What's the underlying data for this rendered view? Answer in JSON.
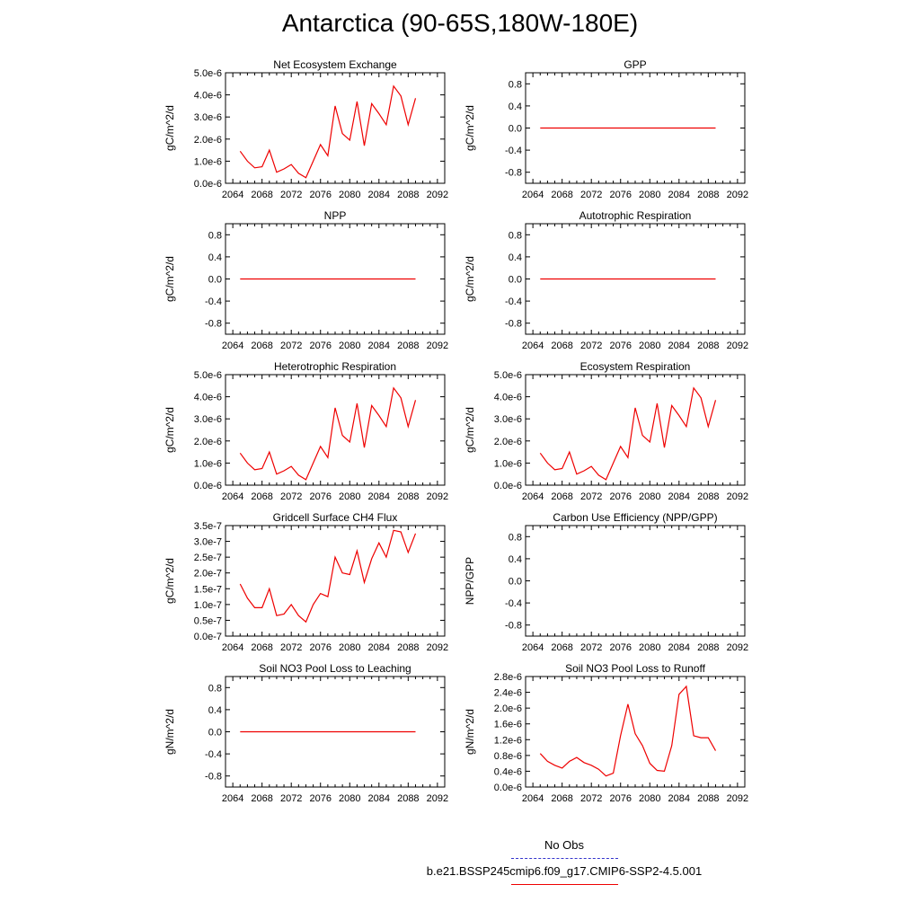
{
  "title": "Antarctica (90-65S,180W-180E)",
  "x_ticks": [
    "2064",
    "2068",
    "2072",
    "2076",
    "2080",
    "2084",
    "2088",
    "2092"
  ],
  "legend": {
    "obs": {
      "label": "No Obs",
      "color": "#3333cc"
    },
    "case": {
      "label": "b.e21.BSSP245cmip6.f09_g17.CMIP6-SSP2-4.5.001",
      "color": "#ee0000"
    }
  },
  "chart_data": [
    {
      "type": "line",
      "title": "Net Ecosystem Exchange",
      "ylabel": "gC/m^2/d",
      "xlim": [
        2063,
        2093
      ],
      "ylim": [
        0,
        5e-06
      ],
      "yticks": [
        {
          "v": 0,
          "label": "0.0e-6"
        },
        {
          "v": 1e-06,
          "label": "1.0e-6"
        },
        {
          "v": 2e-06,
          "label": "2.0e-6"
        },
        {
          "v": 3e-06,
          "label": "3.0e-6"
        },
        {
          "v": 4e-06,
          "label": "4.0e-6"
        },
        {
          "v": 5e-06,
          "label": "5.0e-6"
        }
      ],
      "x": [
        2065,
        2066,
        2067,
        2068,
        2069,
        2070,
        2071,
        2072,
        2073,
        2074,
        2075,
        2076,
        2077,
        2078,
        2079,
        2080,
        2081,
        2082,
        2083,
        2084,
        2085,
        2086,
        2087,
        2088,
        2089
      ],
      "y": [
        1.45e-06,
        1e-06,
        7e-07,
        7.5e-07,
        1.5e-06,
        5e-07,
        6.5e-07,
        8.5e-07,
        4.5e-07,
        2.5e-07,
        1e-06,
        1.75e-06,
        1.25e-06,
        3.5e-06,
        2.25e-06,
        1.95e-06,
        3.7e-06,
        1.7e-06,
        3.6e-06,
        3.15e-06,
        2.65e-06,
        4.4e-06,
        3.95e-06,
        2.65e-06,
        3.85e-06
      ]
    },
    {
      "type": "line",
      "title": "GPP",
      "ylabel": "gC/m^2/d",
      "xlim": [
        2063,
        2093
      ],
      "ylim": [
        -1.0,
        1.0
      ],
      "yticks": [
        {
          "v": -0.8,
          "label": "-0.8"
        },
        {
          "v": -0.4,
          "label": "-0.4"
        },
        {
          "v": 0,
          "label": "0.0"
        },
        {
          "v": 0.4,
          "label": "0.4"
        },
        {
          "v": 0.8,
          "label": "0.8"
        }
      ],
      "x": [
        2065,
        2089
      ],
      "y": [
        0,
        0
      ]
    },
    {
      "type": "line",
      "title": "NPP",
      "ylabel": "gC/m^2/d",
      "xlim": [
        2063,
        2093
      ],
      "ylim": [
        -1.0,
        1.0
      ],
      "yticks": [
        {
          "v": -0.8,
          "label": "-0.8"
        },
        {
          "v": -0.4,
          "label": "-0.4"
        },
        {
          "v": 0,
          "label": "0.0"
        },
        {
          "v": 0.4,
          "label": "0.4"
        },
        {
          "v": 0.8,
          "label": "0.8"
        }
      ],
      "x": [
        2065,
        2089
      ],
      "y": [
        0,
        0
      ]
    },
    {
      "type": "line",
      "title": "Autotrophic Respiration",
      "ylabel": "gC/m^2/d",
      "xlim": [
        2063,
        2093
      ],
      "ylim": [
        -1.0,
        1.0
      ],
      "yticks": [
        {
          "v": -0.8,
          "label": "-0.8"
        },
        {
          "v": -0.4,
          "label": "-0.4"
        },
        {
          "v": 0,
          "label": "0.0"
        },
        {
          "v": 0.4,
          "label": "0.4"
        },
        {
          "v": 0.8,
          "label": "0.8"
        }
      ],
      "x": [
        2065,
        2089
      ],
      "y": [
        0,
        0
      ]
    },
    {
      "type": "line",
      "title": "Heterotrophic Respiration",
      "ylabel": "gC/m^2/d",
      "xlim": [
        2063,
        2093
      ],
      "ylim": [
        0,
        5e-06
      ],
      "yticks": [
        {
          "v": 0,
          "label": "0.0e-6"
        },
        {
          "v": 1e-06,
          "label": "1.0e-6"
        },
        {
          "v": 2e-06,
          "label": "2.0e-6"
        },
        {
          "v": 3e-06,
          "label": "3.0e-6"
        },
        {
          "v": 4e-06,
          "label": "4.0e-6"
        },
        {
          "v": 5e-06,
          "label": "5.0e-6"
        }
      ],
      "x": [
        2065,
        2066,
        2067,
        2068,
        2069,
        2070,
        2071,
        2072,
        2073,
        2074,
        2075,
        2076,
        2077,
        2078,
        2079,
        2080,
        2081,
        2082,
        2083,
        2084,
        2085,
        2086,
        2087,
        2088,
        2089
      ],
      "y": [
        1.45e-06,
        1e-06,
        7e-07,
        7.5e-07,
        1.5e-06,
        5e-07,
        6.5e-07,
        8.5e-07,
        4.5e-07,
        2.5e-07,
        1e-06,
        1.75e-06,
        1.25e-06,
        3.5e-06,
        2.25e-06,
        1.95e-06,
        3.7e-06,
        1.7e-06,
        3.6e-06,
        3.15e-06,
        2.65e-06,
        4.4e-06,
        3.95e-06,
        2.65e-06,
        3.85e-06
      ]
    },
    {
      "type": "line",
      "title": "Ecosystem Respiration",
      "ylabel": "gC/m^2/d",
      "xlim": [
        2063,
        2093
      ],
      "ylim": [
        0,
        5e-06
      ],
      "yticks": [
        {
          "v": 0,
          "label": "0.0e-6"
        },
        {
          "v": 1e-06,
          "label": "1.0e-6"
        },
        {
          "v": 2e-06,
          "label": "2.0e-6"
        },
        {
          "v": 3e-06,
          "label": "3.0e-6"
        },
        {
          "v": 4e-06,
          "label": "4.0e-6"
        },
        {
          "v": 5e-06,
          "label": "5.0e-6"
        }
      ],
      "x": [
        2065,
        2066,
        2067,
        2068,
        2069,
        2070,
        2071,
        2072,
        2073,
        2074,
        2075,
        2076,
        2077,
        2078,
        2079,
        2080,
        2081,
        2082,
        2083,
        2084,
        2085,
        2086,
        2087,
        2088,
        2089
      ],
      "y": [
        1.45e-06,
        1e-06,
        7e-07,
        7.5e-07,
        1.5e-06,
        5e-07,
        6.5e-07,
        8.5e-07,
        4.5e-07,
        2.5e-07,
        1e-06,
        1.75e-06,
        1.25e-06,
        3.5e-06,
        2.25e-06,
        1.95e-06,
        3.7e-06,
        1.7e-06,
        3.6e-06,
        3.15e-06,
        2.65e-06,
        4.4e-06,
        3.95e-06,
        2.65e-06,
        3.85e-06
      ]
    },
    {
      "type": "line",
      "title": "Gridcell Surface CH4 Flux",
      "ylabel": "gC/m^2/d",
      "xlim": [
        2063,
        2093
      ],
      "ylim": [
        0,
        3.5e-07
      ],
      "yticks": [
        {
          "v": 0,
          "label": "0.0e-7"
        },
        {
          "v": 5e-08,
          "label": "0.5e-7"
        },
        {
          "v": 1e-07,
          "label": "1.0e-7"
        },
        {
          "v": 1.5e-07,
          "label": "1.5e-7"
        },
        {
          "v": 2e-07,
          "label": "2.0e-7"
        },
        {
          "v": 2.5e-07,
          "label": "2.5e-7"
        },
        {
          "v": 3e-07,
          "label": "3.0e-7"
        },
        {
          "v": 3.5e-07,
          "label": "3.5e-7"
        }
      ],
      "x": [
        2065,
        2066,
        2067,
        2068,
        2069,
        2070,
        2071,
        2072,
        2073,
        2074,
        2075,
        2076,
        2077,
        2078,
        2079,
        2080,
        2081,
        2082,
        2083,
        2084,
        2085,
        2086,
        2087,
        2088,
        2089
      ],
      "y": [
        1.65e-07,
        1.2e-07,
        9e-08,
        9e-08,
        1.5e-07,
        6.5e-08,
        7e-08,
        1e-07,
        6.5e-08,
        4.5e-08,
        1e-07,
        1.35e-07,
        1.25e-07,
        2.5e-07,
        2e-07,
        1.95e-07,
        2.7e-07,
        1.7e-07,
        2.45e-07,
        2.95e-07,
        2.5e-07,
        3.35e-07,
        3.3e-07,
        2.65e-07,
        3.25e-07
      ]
    },
    {
      "type": "line",
      "title": "Carbon Use Efficiency (NPP/GPP)",
      "ylabel": "NPP/GPP",
      "xlim": [
        2063,
        2093
      ],
      "ylim": [
        -1.0,
        1.0
      ],
      "yticks": [
        {
          "v": -0.8,
          "label": "-0.8"
        },
        {
          "v": -0.4,
          "label": "-0.4"
        },
        {
          "v": 0,
          "label": "0.0"
        },
        {
          "v": 0.4,
          "label": "0.4"
        },
        {
          "v": 0.8,
          "label": "0.8"
        }
      ],
      "x": [],
      "y": []
    },
    {
      "type": "line",
      "title": "Soil NO3 Pool Loss to Leaching",
      "ylabel": "gN/m^2/d",
      "xlim": [
        2063,
        2093
      ],
      "ylim": [
        -1.0,
        1.0
      ],
      "yticks": [
        {
          "v": -0.8,
          "label": "-0.8"
        },
        {
          "v": -0.4,
          "label": "-0.4"
        },
        {
          "v": 0,
          "label": "0.0"
        },
        {
          "v": 0.4,
          "label": "0.4"
        },
        {
          "v": 0.8,
          "label": "0.8"
        }
      ],
      "x": [
        2065,
        2089
      ],
      "y": [
        0,
        0
      ]
    },
    {
      "type": "line",
      "title": "Soil NO3 Pool Loss to Runoff",
      "ylabel": "gN/m^2/d",
      "xlim": [
        2063,
        2093
      ],
      "ylim": [
        0,
        2.8e-06
      ],
      "yticks": [
        {
          "v": 0,
          "label": "0.0e-6"
        },
        {
          "v": 4e-07,
          "label": "0.4e-6"
        },
        {
          "v": 8e-07,
          "label": "0.8e-6"
        },
        {
          "v": 1.2e-06,
          "label": "1.2e-6"
        },
        {
          "v": 1.6e-06,
          "label": "1.6e-6"
        },
        {
          "v": 2e-06,
          "label": "2.0e-6"
        },
        {
          "v": 2.4e-06,
          "label": "2.4e-6"
        },
        {
          "v": 2.8e-06,
          "label": "2.8e-6"
        }
      ],
      "x": [
        2065,
        2066,
        2067,
        2068,
        2069,
        2070,
        2071,
        2072,
        2073,
        2074,
        2075,
        2076,
        2077,
        2078,
        2079,
        2080,
        2081,
        2082,
        2083,
        2084,
        2085,
        2086,
        2087,
        2088,
        2089
      ],
      "y": [
        8.5e-07,
        6.5e-07,
        5.5e-07,
        4.8e-07,
        6.5e-07,
        7.5e-07,
        6.2e-07,
        5.5e-07,
        4.5e-07,
        2.8e-07,
        3.5e-07,
        1.3e-06,
        2.1e-06,
        1.35e-06,
        1.05e-06,
        6e-07,
        4.2e-07,
        4e-07,
        1.05e-06,
        2.35e-06,
        2.55e-06,
        1.3e-06,
        1.25e-06,
        1.25e-06,
        9.2e-07
      ]
    }
  ]
}
